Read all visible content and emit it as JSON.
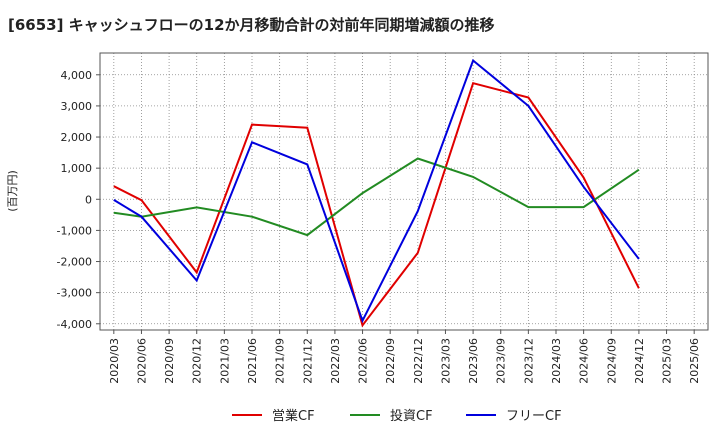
{
  "chart_data": {
    "type": "line",
    "title": "[6653]  キャッシュフローの12か月移動合計の対前年同期増減額の推移",
    "ylabel": "(百万円)",
    "xlabel": "",
    "ylim": [
      -4200,
      4700
    ],
    "yticks": [
      -4000,
      -3000,
      -2000,
      -1000,
      0,
      1000,
      2000,
      3000,
      4000
    ],
    "ytick_labels": [
      "-4,000",
      "-3,000",
      "-2,000",
      "-1,000",
      "0",
      "1,000",
      "2,000",
      "3,000",
      "4,000"
    ],
    "categories": [
      "2020/03",
      "2020/06",
      "2020/09",
      "2020/12",
      "2021/03",
      "2021/06",
      "2021/09",
      "2021/12",
      "2022/03",
      "2022/06",
      "2022/09",
      "2022/12",
      "2023/03",
      "2023/06",
      "2023/09",
      "2023/12",
      "2024/03",
      "2024/06",
      "2024/09",
      "2024/12",
      "2025/03",
      "2025/06"
    ],
    "grid": true,
    "legend_position": "bottom",
    "series": [
      {
        "name": "営業CF",
        "color": "#e00000",
        "points": [
          [
            0,
            420
          ],
          [
            1,
            -30
          ],
          [
            3,
            -2350
          ],
          [
            5,
            2400
          ],
          [
            7,
            2300
          ],
          [
            9,
            -4050
          ],
          [
            11,
            -1720
          ],
          [
            13,
            3730
          ],
          [
            15,
            3270
          ],
          [
            17,
            700
          ],
          [
            19,
            -2860
          ]
        ]
      },
      {
        "name": "投資CF",
        "color": "#228b22",
        "points": [
          [
            0,
            -430
          ],
          [
            1,
            -560
          ],
          [
            3,
            -260
          ],
          [
            5,
            -560
          ],
          [
            7,
            -1150
          ],
          [
            9,
            200
          ],
          [
            11,
            1310
          ],
          [
            13,
            720
          ],
          [
            15,
            -250
          ],
          [
            17,
            -250
          ],
          [
            19,
            950
          ]
        ]
      },
      {
        "name": "フリーCF",
        "color": "#0000dd",
        "points": [
          [
            0,
            -20
          ],
          [
            1,
            -560
          ],
          [
            3,
            -2610
          ],
          [
            5,
            1830
          ],
          [
            7,
            1120
          ],
          [
            9,
            -3900
          ],
          [
            11,
            -380
          ],
          [
            13,
            4460
          ],
          [
            15,
            3000
          ],
          [
            17,
            400
          ],
          [
            19,
            -1920
          ]
        ]
      }
    ]
  }
}
